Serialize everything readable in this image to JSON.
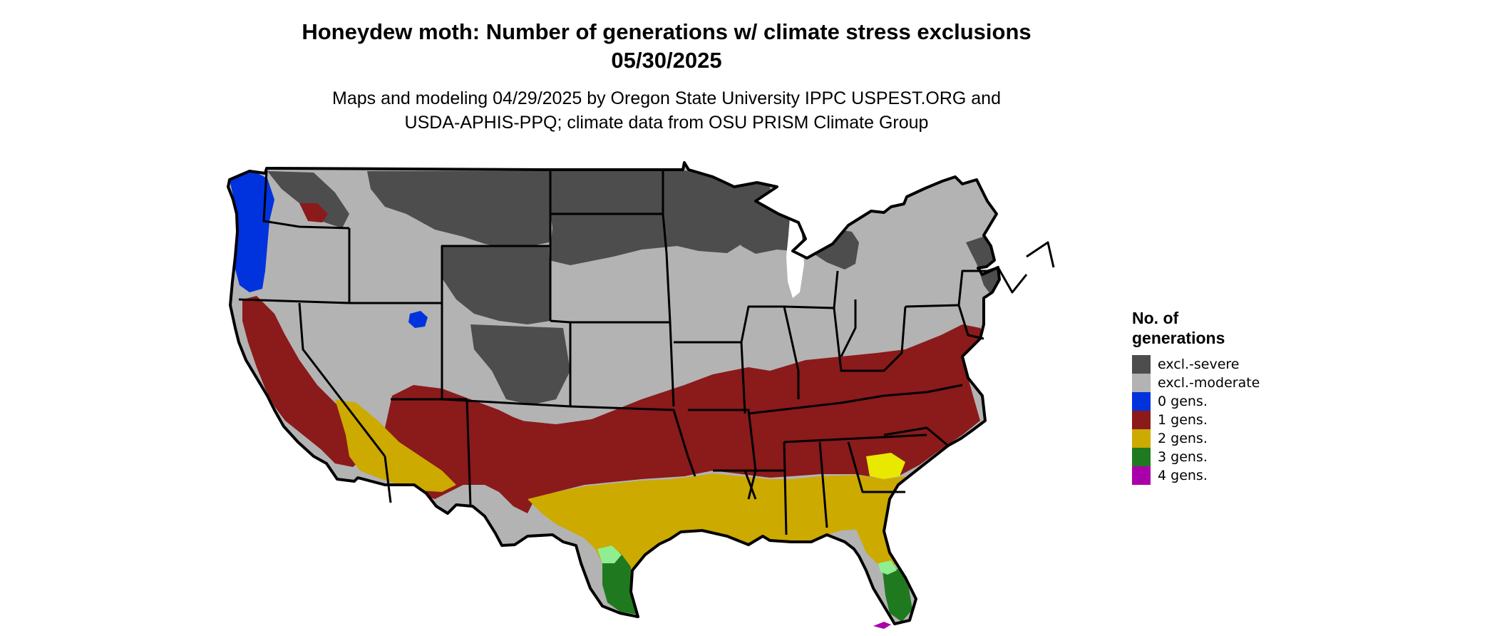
{
  "header": {
    "title_line1": "Honeydew moth: Number of generations w/ climate stress exclusions",
    "title_line2": "05/30/2025",
    "subtitle_line1": "Maps and modeling 04/29/2025 by Oregon State University IPPC USPEST.ORG and",
    "subtitle_line2": "USDA-APHIS-PPQ; climate data from OSU PRISM Climate Group"
  },
  "legend": {
    "title_line1": "No. of",
    "title_line2": "generations",
    "items": [
      {
        "label": "excl.-severe",
        "color": "#4d4d4d"
      },
      {
        "label": "excl.-moderate",
        "color": "#b3b3b3"
      },
      {
        "label": "0 gens.",
        "color": "#0033dd"
      },
      {
        "label": "1 gens.",
        "color": "#8b1a1a"
      },
      {
        "label": "2 gens.",
        "color": "#ccaa00"
      },
      {
        "label": "3 gens.",
        "color": "#1f7a1f"
      },
      {
        "label": "4 gens.",
        "color": "#aa00aa"
      }
    ]
  },
  "map": {
    "colors": {
      "severe": "#4d4d4d",
      "moderate": "#b3b3b3",
      "gen0": "#0033dd",
      "gen1": "#8b1a1a",
      "gen2": "#ccaa00",
      "gen2_light": "#e8e800",
      "gen3": "#1f7a1f",
      "gen3_light": "#90ee90",
      "gen4": "#aa00aa",
      "boundary": "#000000"
    }
  }
}
